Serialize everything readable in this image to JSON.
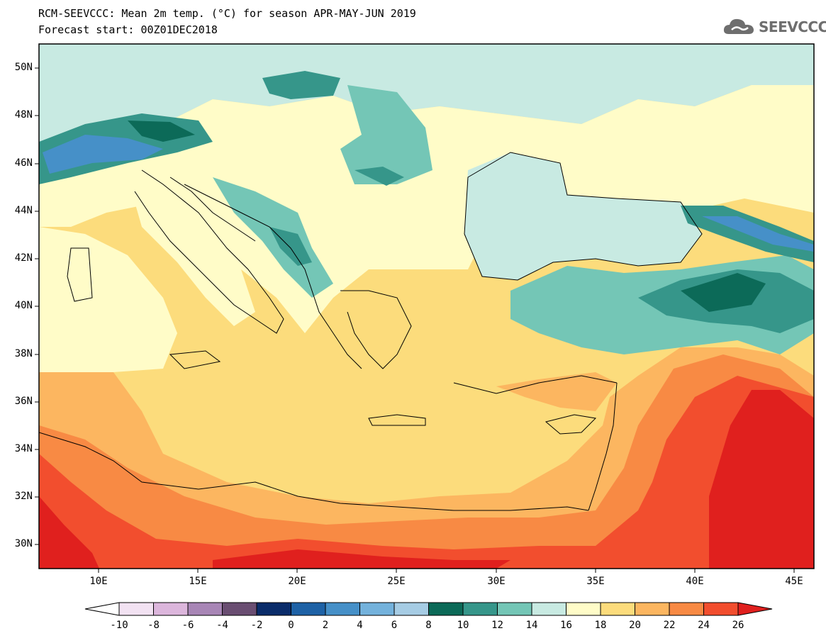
{
  "title": {
    "line1": "RCM-SEEVCCC: Mean 2m temp. (°C) for season APR-MAY-JUN 2019",
    "line2": "Forecast start: 00Z01DEC2018"
  },
  "logo": {
    "text": "SEEVCCC",
    "icon": "cloud-logo-icon",
    "color": "#6e6e6e"
  },
  "map": {
    "projection": "lat-lon",
    "lon_range": [
      7,
      46
    ],
    "lat_range": [
      29,
      51
    ],
    "lat_labels": [
      "50N",
      "48N",
      "46N",
      "44N",
      "42N",
      "40N",
      "38N",
      "36N",
      "34N",
      "32N",
      "30N"
    ],
    "lon_labels": [
      "10E",
      "15E",
      "20E",
      "25E",
      "30E",
      "35E",
      "40E",
      "45E"
    ],
    "variable": "Mean 2m temperature",
    "units": "°C"
  },
  "colorbar": {
    "labels": [
      "-10",
      "-8",
      "-6",
      "-4",
      "-2",
      "0",
      "2",
      "4",
      "6",
      "8",
      "10",
      "12",
      "14",
      "16",
      "18",
      "20",
      "22",
      "24",
      "26"
    ],
    "colors": [
      "#ffffff",
      "#f2e2f2",
      "#dcb6dc",
      "#a886b6",
      "#6a4e72",
      "#0a2c6a",
      "#1e62a6",
      "#4690c8",
      "#74b2dc",
      "#a6cce4",
      "#0c6a58",
      "#36968a",
      "#74c6b6",
      "#c8eae2",
      "#fffcc8",
      "#fcdc7c",
      "#fcb660",
      "#f88a44",
      "#f24e2e",
      "#e0201e"
    ]
  }
}
